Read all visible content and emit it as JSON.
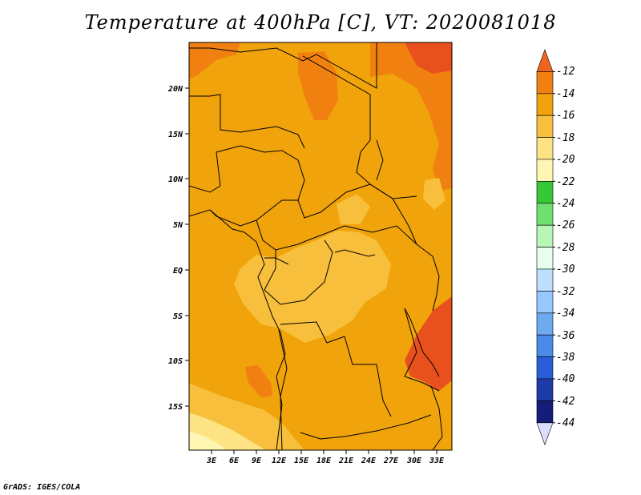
{
  "title": "Temperature at 400hPa [C], VT: 2020081018",
  "credit": "GrADS: IGES/COLA",
  "map": {
    "lat_labels": [
      "20N",
      "15N",
      "10N",
      "5N",
      "EQ",
      "5S",
      "10S",
      "15S"
    ],
    "lon_labels": [
      "3E",
      "6E",
      "9E",
      "12E",
      "15E",
      "18E",
      "21E",
      "24E",
      "27E",
      "30E",
      "33E"
    ],
    "fill_colors": {
      "base": "#f0a30a",
      "warm": "#f08010",
      "hot": "#e8501e",
      "cool": "#f8bf3c",
      "cooler": "#fde383",
      "coolest": "#fff6b4"
    }
  },
  "colorbar": {
    "labels": [
      "-12",
      "-14",
      "-16",
      "-18",
      "-20",
      "-22",
      "-24",
      "-26",
      "-28",
      "-30",
      "-32",
      "-34",
      "-36",
      "-38",
      "-40",
      "-42",
      "-44"
    ],
    "colors": [
      "#f0641e",
      "#f08010",
      "#f0a30a",
      "#f8bf3c",
      "#fde383",
      "#fff6b4",
      "#37c837",
      "#6fe06f",
      "#b8f6b8",
      "#e6fff0",
      "#bee0ff",
      "#96c8ff",
      "#6eaaf0",
      "#4a8ae8",
      "#2a5ed8",
      "#1e3ca8",
      "#141e78",
      "#dcdcff"
    ]
  }
}
